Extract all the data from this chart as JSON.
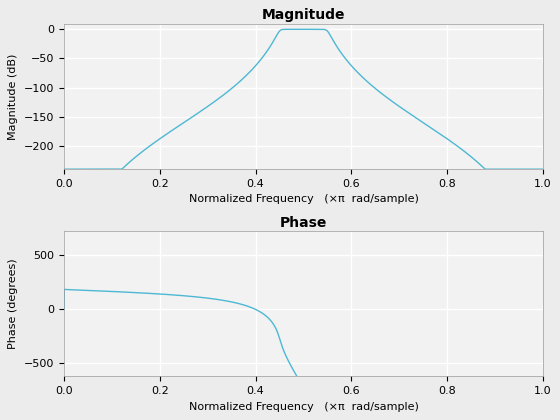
{
  "title_mag": "Magnitude",
  "title_phase": "Phase",
  "xlabel": "Normalized Frequency   (×π  rad/sample)",
  "ylabel_mag": "Magnitude (dB)",
  "ylabel_phase": "Phase (degrees)",
  "line_color": "#4db8d4",
  "xlim": [
    0,
    1
  ],
  "mag_ylim": [
    -240,
    10
  ],
  "phase_ylim": [
    -620,
    720
  ],
  "mag_yticks": [
    0,
    -50,
    -100,
    -150,
    -200
  ],
  "phase_yticks": [
    -500,
    0,
    500
  ],
  "mag_xticks": [
    0,
    0.2,
    0.4,
    0.6,
    0.8,
    1.0
  ],
  "phase_xticks": [
    0,
    0.2,
    0.4,
    0.6,
    0.8,
    1.0
  ],
  "bg_color": "#f2f2f2",
  "grid_color": "#ffffff",
  "n_points": 4096,
  "filter_order": 10,
  "band_low": 0.45,
  "band_high": 0.55,
  "title_fontsize": 10,
  "label_fontsize": 8,
  "tick_fontsize": 8,
  "fig_bg": "#ececec"
}
